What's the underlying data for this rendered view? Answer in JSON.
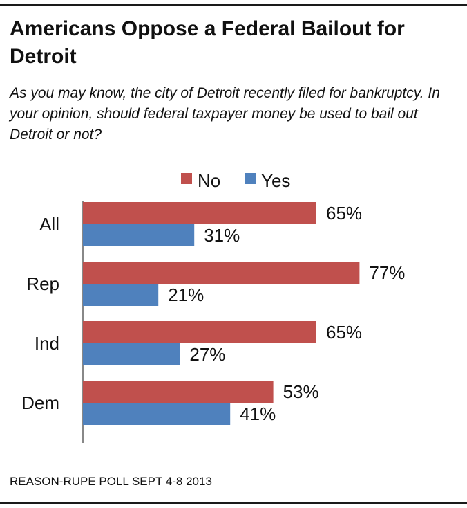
{
  "header": {
    "title": "Americans Oppose a Federal Bailout for Detroit",
    "subtitle": "As you may know, the city of Detroit recently filed for bankruptcy. In your opinion, should federal taxpayer money be used to bail out Detroit or not?"
  },
  "footer": {
    "source": "REASON-RUPE POLL SEPT 4-8 2013"
  },
  "chart_data": {
    "type": "bar",
    "orientation": "horizontal",
    "title": "Americans Oppose a Federal Bailout for Detroit",
    "categories": [
      "All",
      "Rep",
      "Ind",
      "Dem"
    ],
    "series": [
      {
        "name": "No",
        "color": "#c0504d",
        "values": [
          65,
          77,
          65,
          53
        ],
        "labels": [
          "65%",
          "77%",
          "65%",
          "53%"
        ]
      },
      {
        "name": "Yes",
        "color": "#4f81bd",
        "values": [
          31,
          21,
          27,
          41
        ],
        "labels": [
          "31%",
          "21%",
          "27%",
          "41%"
        ]
      }
    ],
    "unit": "%",
    "xlim": [
      0,
      100
    ],
    "legend_position": "top-center",
    "grid": false
  }
}
